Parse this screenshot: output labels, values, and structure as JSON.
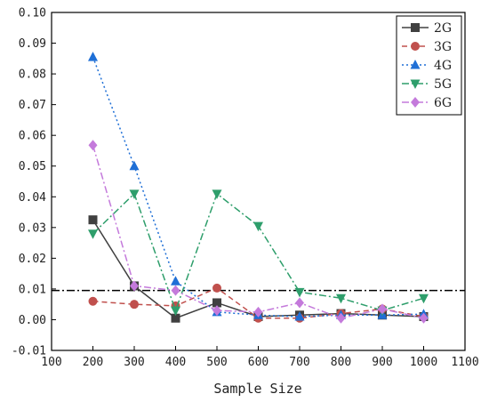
{
  "chart_data": {
    "type": "line",
    "title": "",
    "xlabel": "Sample Size",
    "ylabel": "",
    "xlim": [
      100,
      1100
    ],
    "ylim": [
      -0.01,
      0.1
    ],
    "xticks": [
      100,
      200,
      300,
      400,
      500,
      600,
      700,
      800,
      900,
      1000,
      1100
    ],
    "yticks": [
      -0.01,
      0.0,
      0.01,
      0.02,
      0.03,
      0.04,
      0.05,
      0.06,
      0.07,
      0.08,
      0.09,
      0.1
    ],
    "ytick_labels": [
      "-0.01",
      "0.00",
      "0.01",
      "0.02",
      "0.03",
      "0.04",
      "0.05",
      "0.06",
      "0.07",
      "0.08",
      "0.09",
      "0.10"
    ],
    "grid": false,
    "legend": "top-right",
    "x": [
      200,
      300,
      400,
      500,
      600,
      700,
      800,
      900,
      1000
    ],
    "reference_line": {
      "y": 0.0095,
      "color": "#000000",
      "style": "dashdot"
    },
    "series": [
      {
        "name": "2G",
        "color": "#404040",
        "marker": "square",
        "dash": "solid",
        "values": [
          0.0325,
          0.011,
          0.0005,
          0.0055,
          0.001,
          0.0015,
          0.002,
          0.0015,
          0.001
        ]
      },
      {
        "name": "3G",
        "color": "#c0504d",
        "marker": "circle",
        "dash": "dash",
        "values": [
          0.006,
          0.005,
          0.0045,
          0.0103,
          0.0005,
          0.0005,
          0.002,
          0.0035,
          0.001
        ]
      },
      {
        "name": "4G",
        "color": "#1f6fd6",
        "marker": "triangle-up",
        "dash": "dot",
        "values": [
          0.0855,
          0.05,
          0.0125,
          0.0025,
          0.0015,
          0.001,
          0.0015,
          0.0015,
          0.0018
        ]
      },
      {
        "name": "5G",
        "color": "#2e9e6b",
        "marker": "triangle-down",
        "dash": "dashdot",
        "values": [
          0.028,
          0.041,
          0.003,
          0.041,
          0.0305,
          0.009,
          0.007,
          0.003,
          0.007
        ]
      },
      {
        "name": "6G",
        "color": "#c47adb",
        "marker": "diamond",
        "dash": "dashdot",
        "values": [
          0.0568,
          0.011,
          0.0095,
          0.003,
          0.0025,
          0.0055,
          0.0005,
          0.0035,
          0.0005
        ]
      }
    ]
  }
}
